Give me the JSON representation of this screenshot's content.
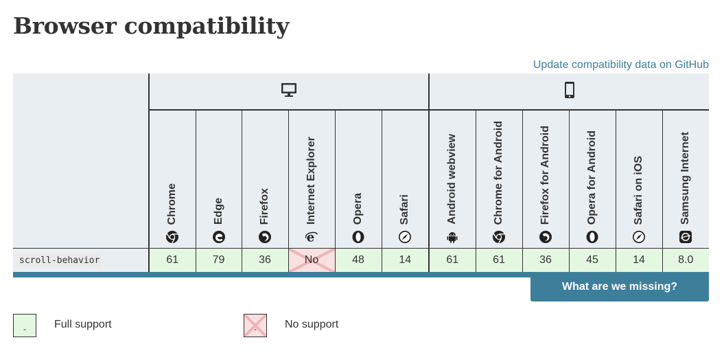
{
  "page_title": "Browser compatibility",
  "github_link": "Update compatibility data on GitHub",
  "platforms": {
    "desktop_icon": "desktop-monitor-icon",
    "mobile_icon": "mobile-phone-icon"
  },
  "browsers": [
    {
      "name": "Chrome",
      "icon": "chrome-icon"
    },
    {
      "name": "Edge",
      "icon": "edge-icon"
    },
    {
      "name": "Firefox",
      "icon": "firefox-icon"
    },
    {
      "name": "Internet Explorer",
      "icon": "internet-explorer-icon"
    },
    {
      "name": "Opera",
      "icon": "opera-icon"
    },
    {
      "name": "Safari",
      "icon": "safari-icon"
    },
    {
      "name": "Android webview",
      "icon": "android-icon"
    },
    {
      "name": "Chrome for Android",
      "icon": "chrome-icon"
    },
    {
      "name": "Firefox for Android",
      "icon": "firefox-icon"
    },
    {
      "name": "Opera for Android",
      "icon": "opera-icon"
    },
    {
      "name": "Safari on iOS",
      "icon": "safari-icon"
    },
    {
      "name": "Samsung Internet",
      "icon": "samsung-internet-icon"
    }
  ],
  "feature": {
    "name": "scroll-behavior",
    "support": [
      "61",
      "79",
      "36",
      "No",
      "48",
      "14",
      "61",
      "61",
      "36",
      "45",
      "14",
      "8.0"
    ],
    "supported": [
      true,
      true,
      true,
      false,
      true,
      true,
      true,
      true,
      true,
      true,
      true,
      true
    ]
  },
  "missing_button": "What are we missing?",
  "legend": {
    "full_support_mark": "-",
    "full_support_label": "Full support",
    "no_support_mark": "-",
    "no_support_label": "No support"
  },
  "colors": {
    "accent": "#3d7e9a",
    "header_bg": "#e9eef2",
    "full_support_bg": "#e4f8e1",
    "no_support_bg": "#f8e1e1"
  }
}
